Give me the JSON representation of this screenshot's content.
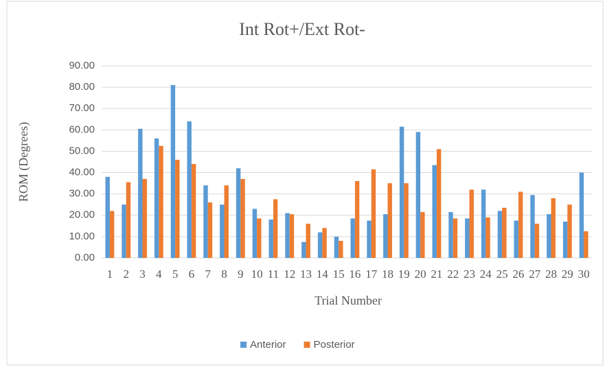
{
  "chart_data": {
    "type": "bar",
    "title": "Int Rot+/Ext Rot-",
    "x_label": "Trial Number",
    "y_label": "ROM (Degrees)",
    "categories": [
      "1",
      "2",
      "3",
      "4",
      "5",
      "6",
      "7",
      "8",
      "9",
      "10",
      "11",
      "12",
      "13",
      "14",
      "15",
      "16",
      "17",
      "18",
      "19",
      "20",
      "21",
      "22",
      "23",
      "24",
      "25",
      "26",
      "27",
      "28",
      "29",
      "30"
    ],
    "series": [
      {
        "name": "Anterior",
        "color": "#5b9bd5",
        "values": [
          38,
          25,
          60.5,
          56,
          81,
          64,
          34,
          25,
          42,
          23,
          18,
          21,
          7.5,
          12,
          10,
          18.5,
          17.5,
          20.5,
          61.5,
          59,
          43.5,
          21.5,
          18.5,
          32,
          22,
          17.5,
          29.5,
          20.5,
          17,
          40
        ]
      },
      {
        "name": "Posterior",
        "color": "#ed7d31",
        "values": [
          22,
          35.5,
          37,
          52.5,
          46,
          44,
          26,
          34,
          37,
          18.5,
          27.5,
          20.5,
          16,
          14,
          8,
          36,
          41.5,
          35,
          35,
          21.5,
          51,
          18.5,
          32,
          19,
          23.5,
          31,
          16,
          28,
          25,
          12.5
        ]
      }
    ],
    "ylim": [
      0,
      90
    ],
    "yticks": [
      {
        "value": 0,
        "label": "0.00"
      },
      {
        "value": 10,
        "label": "10.00"
      },
      {
        "value": 20,
        "label": "20.00"
      },
      {
        "value": 30,
        "label": "30.00"
      },
      {
        "value": 40,
        "label": "40.00"
      },
      {
        "value": 50,
        "label": "50.00"
      },
      {
        "value": 60,
        "label": "60.00"
      },
      {
        "value": 70,
        "label": "70.00"
      },
      {
        "value": 80,
        "label": "80.00"
      },
      {
        "value": 90,
        "label": "90.00"
      }
    ],
    "grid": true,
    "legend": "bottom"
  }
}
